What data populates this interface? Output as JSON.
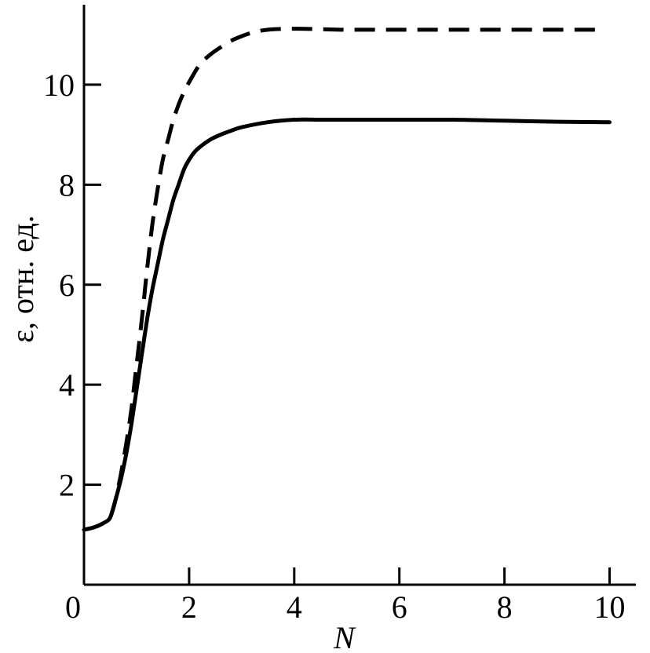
{
  "chart_data": {
    "type": "line",
    "title": "",
    "xlabel": "N",
    "ylabel": "ε, отн. ед.",
    "xlim": [
      0,
      10.5
    ],
    "ylim": [
      0,
      11.6
    ],
    "xticks": [
      0,
      2,
      4,
      6,
      8,
      10
    ],
    "xtick_labels": [
      "0",
      "2",
      "4",
      "6",
      "8",
      "10"
    ],
    "yticks": [
      2,
      4,
      6,
      8,
      10
    ],
    "ytick_labels": [
      "2",
      "4",
      "6",
      "8",
      "10"
    ],
    "grid": false,
    "series": [
      {
        "style": "solid",
        "color": "#000000",
        "x": [
          0.0,
          0.2,
          0.4,
          0.5,
          0.6,
          0.7,
          0.8,
          0.9,
          1.0,
          1.1,
          1.2,
          1.3,
          1.4,
          1.5,
          1.6,
          1.7,
          1.8,
          1.9,
          2.0,
          2.1,
          2.2,
          2.4,
          2.6,
          2.8,
          3.0,
          3.5,
          4.0,
          4.5,
          5.0,
          6.0,
          7.0,
          8.0,
          9.0,
          10.0
        ],
        "y": [
          1.1,
          1.15,
          1.25,
          1.35,
          1.7,
          2.1,
          2.6,
          3.2,
          3.9,
          4.6,
          5.3,
          5.9,
          6.4,
          6.9,
          7.3,
          7.7,
          8.0,
          8.3,
          8.5,
          8.65,
          8.75,
          8.9,
          9.0,
          9.08,
          9.15,
          9.25,
          9.3,
          9.3,
          9.3,
          9.3,
          9.3,
          9.28,
          9.26,
          9.25
        ]
      },
      {
        "style": "dashed",
        "color": "#000000",
        "x": [
          0.0,
          0.2,
          0.4,
          0.5,
          0.6,
          0.7,
          0.8,
          0.9,
          1.0,
          1.1,
          1.2,
          1.3,
          1.4,
          1.5,
          1.6,
          1.7,
          1.8,
          1.9,
          2.0,
          2.2,
          2.4,
          2.6,
          2.8,
          3.0,
          3.2,
          3.5,
          4.0,
          4.5,
          5.0,
          6.0,
          7.0,
          8.0,
          9.0,
          9.8
        ],
        "y": [
          1.1,
          1.15,
          1.25,
          1.35,
          1.7,
          2.2,
          2.8,
          3.5,
          4.4,
          5.3,
          6.3,
          7.2,
          7.9,
          8.5,
          8.9,
          9.3,
          9.6,
          9.85,
          10.05,
          10.4,
          10.6,
          10.75,
          10.88,
          10.97,
          11.04,
          11.1,
          11.12,
          11.11,
          11.1,
          11.1,
          11.1,
          11.1,
          11.1,
          11.1
        ]
      }
    ]
  }
}
